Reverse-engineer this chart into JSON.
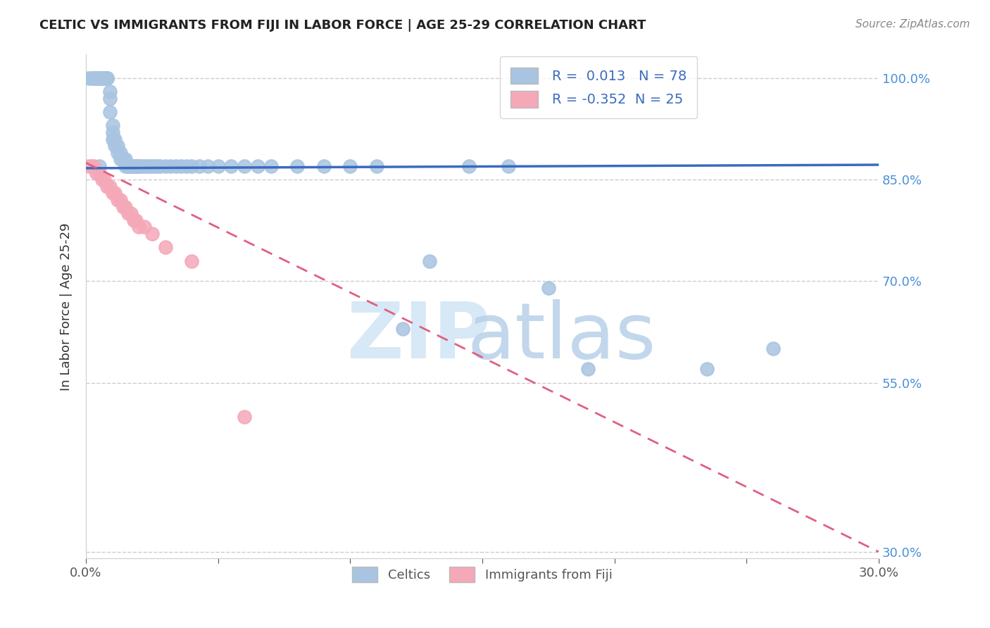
{
  "title": "CELTIC VS IMMIGRANTS FROM FIJI IN LABOR FORCE | AGE 25-29 CORRELATION CHART",
  "source": "Source: ZipAtlas.com",
  "ylabel": "In Labor Force | Age 25-29",
  "xlim": [
    0.0,
    0.3
  ],
  "ylim": [
    0.29,
    1.035
  ],
  "xtick_positions": [
    0.0,
    0.05,
    0.1,
    0.15,
    0.2,
    0.25,
    0.3
  ],
  "xticklabels": [
    "0.0%",
    "",
    "",
    "",
    "",
    "",
    "30.0%"
  ],
  "ytick_positions": [
    0.3,
    0.55,
    0.7,
    0.85,
    1.0
  ],
  "yticklabels": [
    "30.0%",
    "55.0%",
    "70.0%",
    "85.0%",
    "100.0%"
  ],
  "celtic_R": 0.013,
  "celtic_N": 78,
  "fiji_R": -0.352,
  "fiji_N": 25,
  "celtic_color": "#a8c4e0",
  "fiji_color": "#f4a8b8",
  "celtic_line_color": "#3a6bbf",
  "fiji_line_color": "#e06080",
  "background_color": "#ffffff",
  "celtic_scatter_x": [
    0.001,
    0.002,
    0.003,
    0.003,
    0.004,
    0.004,
    0.005,
    0.005,
    0.005,
    0.005,
    0.006,
    0.006,
    0.007,
    0.007,
    0.007,
    0.008,
    0.008,
    0.008,
    0.009,
    0.009,
    0.009,
    0.01,
    0.01,
    0.01,
    0.011,
    0.011,
    0.012,
    0.012,
    0.013,
    0.013,
    0.014,
    0.014,
    0.015,
    0.015,
    0.016,
    0.016,
    0.017,
    0.017,
    0.018,
    0.018,
    0.019,
    0.019,
    0.02,
    0.02,
    0.021,
    0.022,
    0.023,
    0.024,
    0.025,
    0.026,
    0.027,
    0.028,
    0.03,
    0.032,
    0.034,
    0.036,
    0.038,
    0.04,
    0.043,
    0.046,
    0.05,
    0.055,
    0.06,
    0.065,
    0.07,
    0.08,
    0.09,
    0.1,
    0.11,
    0.12,
    0.13,
    0.145,
    0.16,
    0.175,
    0.19,
    0.235,
    0.26,
    0.005
  ],
  "celtic_scatter_y": [
    1.0,
    1.0,
    1.0,
    1.0,
    1.0,
    1.0,
    1.0,
    1.0,
    1.0,
    1.0,
    1.0,
    1.0,
    1.0,
    1.0,
    1.0,
    1.0,
    1.0,
    1.0,
    0.98,
    0.97,
    0.95,
    0.93,
    0.92,
    0.91,
    0.91,
    0.9,
    0.9,
    0.89,
    0.89,
    0.88,
    0.88,
    0.88,
    0.88,
    0.87,
    0.87,
    0.87,
    0.87,
    0.87,
    0.87,
    0.87,
    0.87,
    0.87,
    0.87,
    0.87,
    0.87,
    0.87,
    0.87,
    0.87,
    0.87,
    0.87,
    0.87,
    0.87,
    0.87,
    0.87,
    0.87,
    0.87,
    0.87,
    0.87,
    0.87,
    0.87,
    0.87,
    0.87,
    0.87,
    0.87,
    0.87,
    0.87,
    0.87,
    0.87,
    0.87,
    0.63,
    0.73,
    0.87,
    0.87,
    0.69,
    0.57,
    0.57,
    0.6,
    0.87
  ],
  "fiji_scatter_x": [
    0.001,
    0.002,
    0.003,
    0.004,
    0.005,
    0.006,
    0.007,
    0.008,
    0.009,
    0.01,
    0.011,
    0.012,
    0.013,
    0.014,
    0.015,
    0.016,
    0.017,
    0.018,
    0.019,
    0.02,
    0.022,
    0.025,
    0.03,
    0.04,
    0.06
  ],
  "fiji_scatter_y": [
    0.87,
    0.87,
    0.87,
    0.86,
    0.86,
    0.85,
    0.85,
    0.84,
    0.84,
    0.83,
    0.83,
    0.82,
    0.82,
    0.81,
    0.81,
    0.8,
    0.8,
    0.79,
    0.79,
    0.78,
    0.78,
    0.77,
    0.75,
    0.73,
    0.5
  ],
  "celtic_trend_x": [
    0.0,
    0.3
  ],
  "celtic_trend_y": [
    0.867,
    0.872
  ],
  "fiji_trend_x": [
    0.0,
    0.3
  ],
  "fiji_trend_y": [
    0.875,
    0.3
  ]
}
